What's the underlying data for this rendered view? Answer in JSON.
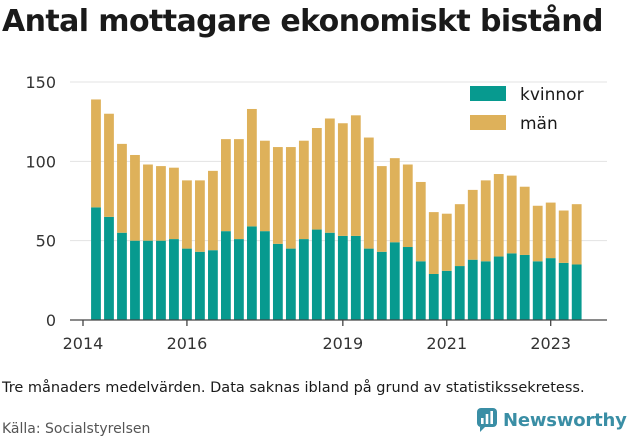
{
  "header": {
    "title": "Antal mottagare ekonomiskt bistånd"
  },
  "footer": {
    "note": "Tre månaders medelvärden. Data saknas ibland på grund av statistikssekretess.",
    "source": "Källa: Socialstyrelsen",
    "brand": "Newsworthy",
    "brand_icon": "newsworthy-logo-icon"
  },
  "colors": {
    "kvinnor": "#079a8f",
    "man": "#deb15a",
    "grid": "#e3e3e3",
    "axis": "#444444",
    "brand": "#3a8ea5"
  },
  "chart_data": {
    "type": "bar",
    "stacked": true,
    "title": "Antal mottagare ekonomiskt bistånd",
    "xlabel": "",
    "ylabel": "",
    "ylim": [
      0,
      150
    ],
    "yticks": [
      0,
      50,
      100,
      150
    ],
    "xlim": [
      "2013-12",
      "2024-04"
    ],
    "xticks": [
      {
        "label": "2014",
        "date": "2014-03"
      },
      {
        "label": "2016",
        "date": "2016-03"
      },
      {
        "label": "2019",
        "date": "2019-03"
      },
      {
        "label": "2021",
        "date": "2021-03"
      },
      {
        "label": "2023",
        "date": "2023-03"
      }
    ],
    "grid": true,
    "legend_position": "top-right",
    "categories": [
      "2014-06",
      "2014-09",
      "2014-12",
      "2015-03",
      "2015-06",
      "2015-09",
      "2015-12",
      "2016-03",
      "2016-06",
      "2016-09",
      "2016-12",
      "2017-03",
      "2017-06",
      "2017-09",
      "2017-12",
      "2018-03",
      "2018-06",
      "2018-09",
      "2018-12",
      "2019-03",
      "2019-06",
      "2019-09",
      "2019-12",
      "2020-03",
      "2020-06",
      "2020-09",
      "2020-12",
      "2021-03",
      "2021-06",
      "2021-09",
      "2021-12",
      "2022-03",
      "2022-06",
      "2022-09",
      "2022-12",
      "2023-03",
      "2023-06",
      "2023-09",
      "2023-12"
    ],
    "series": [
      {
        "name": "kvinnor",
        "values": [
          71,
          65,
          55,
          50,
          50,
          50,
          51,
          45,
          43,
          44,
          56,
          51,
          59,
          56,
          48,
          45,
          51,
          57,
          55,
          53,
          53,
          45,
          43,
          49,
          46,
          37,
          29,
          31,
          34,
          38,
          37,
          40,
          42,
          41,
          37,
          39,
          36,
          35,
          0
        ]
      },
      {
        "name": "män",
        "values": [
          68,
          65,
          56,
          54,
          48,
          47,
          45,
          43,
          45,
          50,
          58,
          63,
          74,
          57,
          61,
          64,
          62,
          64,
          72,
          71,
          76,
          70,
          54,
          53,
          52,
          50,
          39,
          36,
          39,
          44,
          51,
          52,
          49,
          43,
          35,
          35,
          33,
          38,
          0
        ]
      }
    ]
  }
}
